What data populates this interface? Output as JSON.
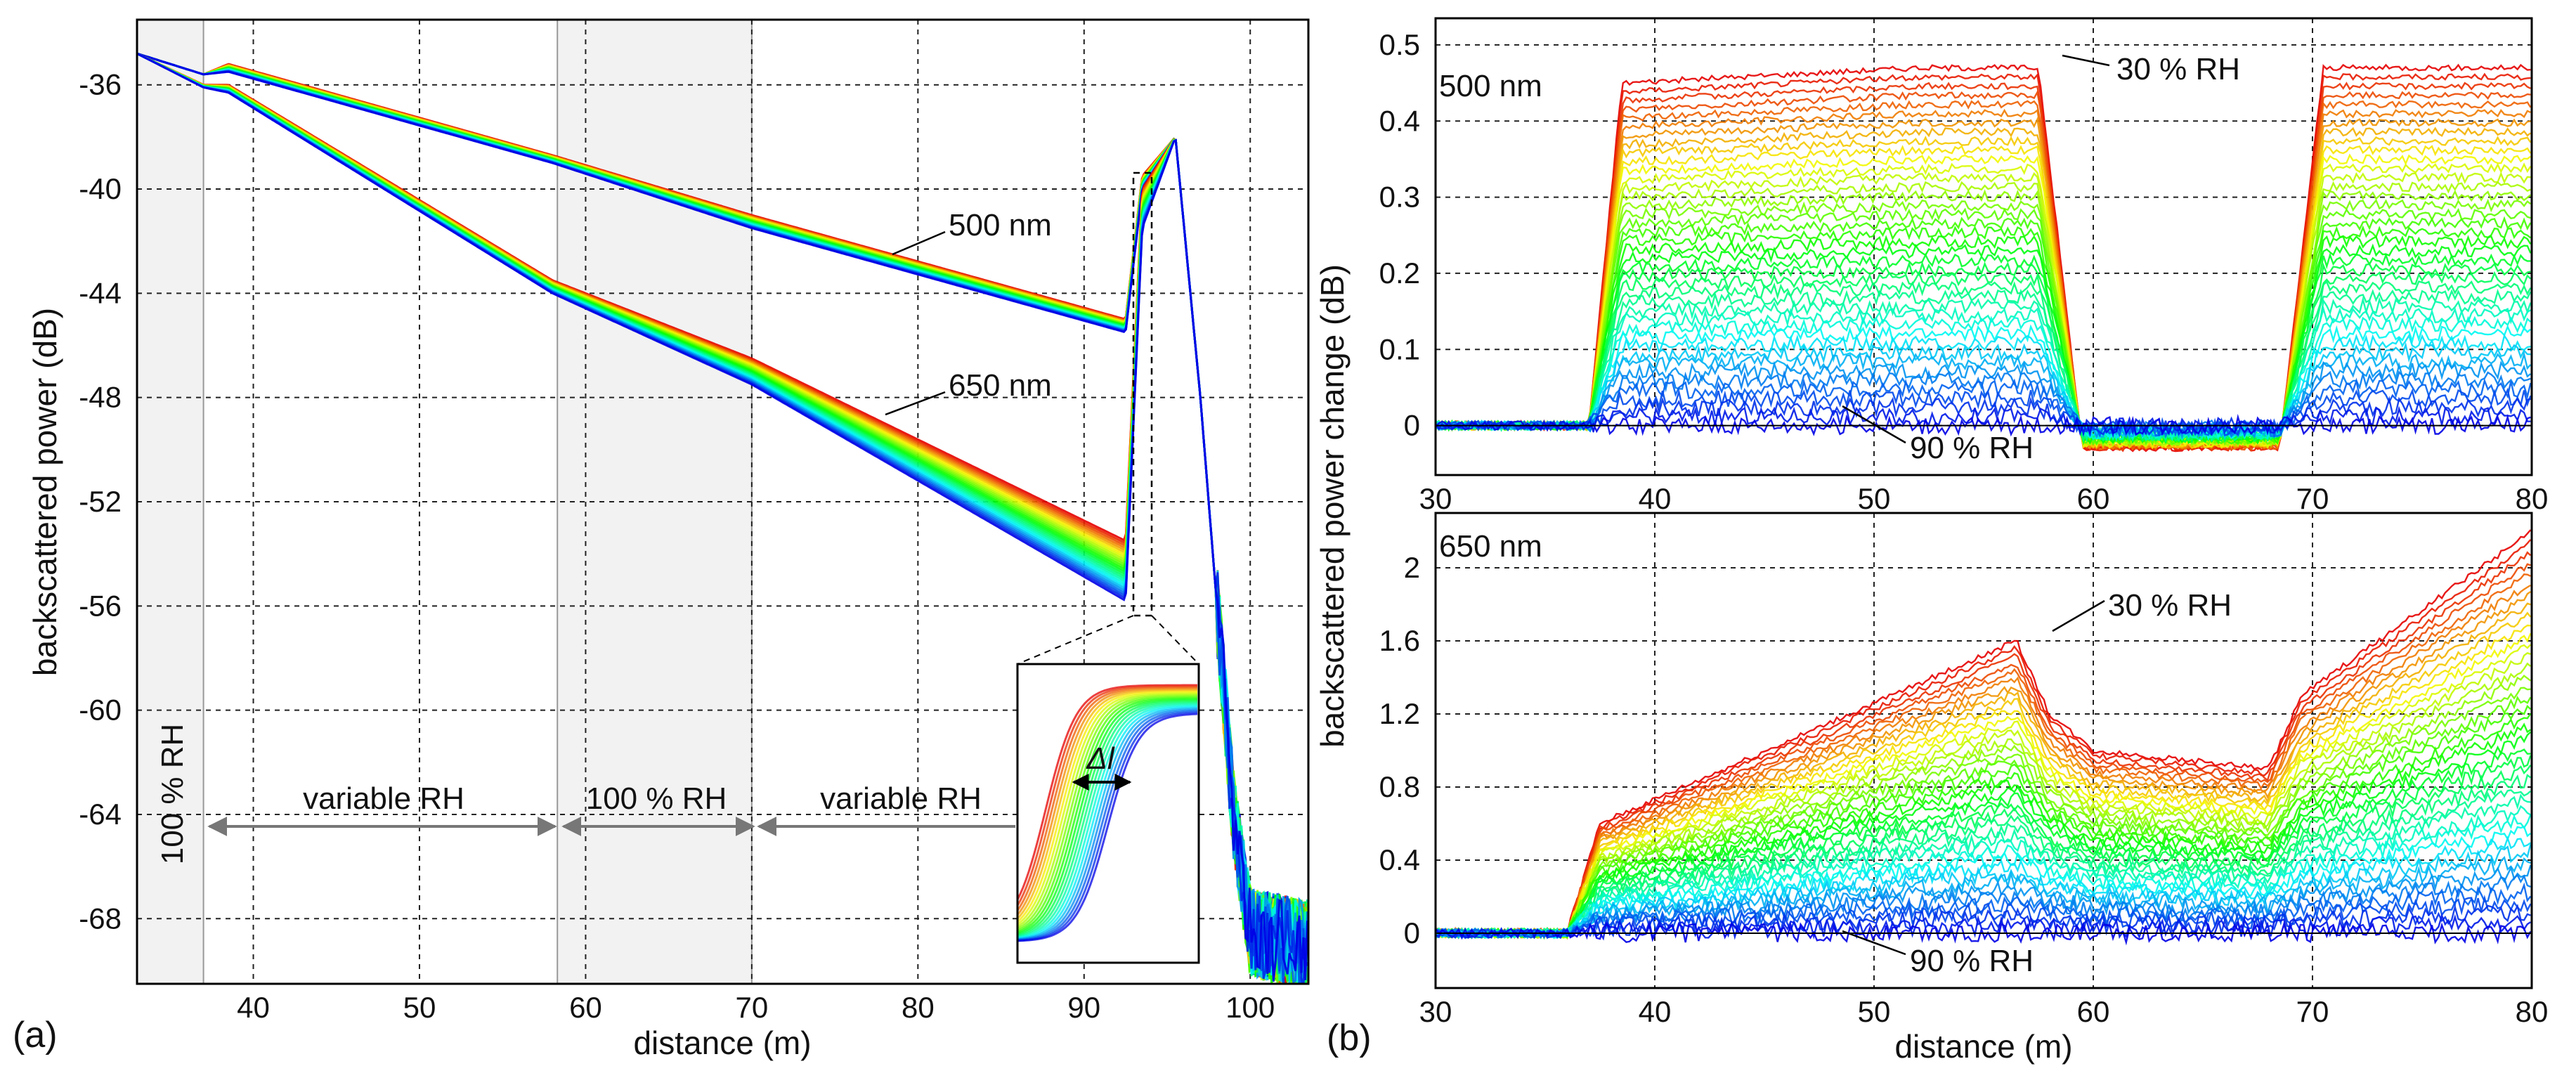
{
  "chart_data": [
    {
      "panel": "(a)",
      "type": "line",
      "xlabel": "distance (m)",
      "ylabel": "backscattered power (dB)",
      "xlim": [
        33,
        103.5
      ],
      "ylim": [
        -70.5,
        -33.5
      ],
      "xticks": [
        40,
        50,
        60,
        70,
        80,
        90,
        100
      ],
      "yticks": [
        -36,
        -40,
        -44,
        -48,
        -52,
        -56,
        -60,
        -64,
        -68
      ],
      "grid": true,
      "shaded_regions": [
        {
          "x": [
            33,
            37
          ],
          "label": "100 % RH",
          "orientation": "vertical"
        },
        {
          "x": [
            58.3,
            70
          ],
          "label": "100 % RH"
        }
      ],
      "region_arrows": [
        {
          "x": [
            37,
            58.3
          ],
          "label": "variable RH"
        },
        {
          "x": [
            70,
            94
          ],
          "label": "variable RH"
        }
      ],
      "series": [
        {
          "name": "500 nm",
          "x": [
            33,
            37,
            38.5,
            58,
            70,
            92.5,
            93.5,
            95.5,
            97,
            99,
            100,
            103
          ],
          "y_high_rh": [
            -34.8,
            -35.6,
            -35.5,
            -39.0,
            -41.5,
            -45.5,
            -40.0,
            -38.0,
            -48.0,
            -64.0,
            -68.5,
            -69.0
          ],
          "y_low_rh": [
            -34.8,
            -35.6,
            -35.2,
            -38.7,
            -41.0,
            -45.0,
            -39.5,
            -38.0,
            -48.0,
            -64.0,
            -68.5,
            -69.0
          ]
        },
        {
          "name": "650 nm",
          "x": [
            33,
            37,
            38.5,
            58,
            70,
            92.5,
            93.5,
            95.5,
            97,
            99,
            100,
            103
          ],
          "y_high_rh": [
            -34.8,
            -36.1,
            -36.3,
            -44.0,
            -47.5,
            -55.8,
            -41.5,
            -38.0,
            -48.0,
            -64.0,
            -68.5,
            -69.0
          ],
          "y_low_rh": [
            -34.8,
            -36.0,
            -36.0,
            -43.5,
            -46.5,
            -53.5,
            -40.0,
            -38.0,
            -48.0,
            -64.0,
            -68.5,
            -69.0
          ]
        }
      ],
      "inset": {
        "label": "Δl",
        "zoom_box_x": [
          92.8,
          94.5
        ],
        "zoom_box_y": [
          -57,
          -39
        ]
      }
    },
    {
      "panel": "(b) top",
      "type": "line",
      "title": "500 nm",
      "xlabel": "",
      "ylabel": "backscattered power change (dB)",
      "xlim": [
        30,
        80
      ],
      "ylim": [
        -0.065,
        0.535
      ],
      "xticks": [
        30,
        40,
        50,
        60,
        70,
        80
      ],
      "yticks": [
        0,
        0.1,
        0.2,
        0.3,
        0.4,
        0.5
      ],
      "grid": true,
      "curves_from": "30 % RH",
      "curves_to": "90 % RH",
      "envelope_30RH": {
        "x": [
          30,
          37,
          38.5,
          52,
          57.5,
          59.5,
          68.5,
          70.5,
          80
        ],
        "y": [
          0.0,
          0.0,
          0.45,
          0.47,
          0.47,
          -0.03,
          -0.03,
          0.47,
          0.47
        ]
      },
      "annotations": [
        {
          "text": "30 % RH",
          "arrow_to_x": 57,
          "arrow_to_y": 0.49
        },
        {
          "text": "90 % RH",
          "arrow_to_x": 52.5,
          "arrow_to_y": 0.0
        }
      ]
    },
    {
      "panel": "(b) bottom",
      "type": "line",
      "title": "650 nm",
      "xlabel": "distance (m)",
      "ylabel": "",
      "xlim": [
        30,
        80
      ],
      "ylim": [
        -0.3,
        2.3
      ],
      "xticks": [
        30,
        40,
        50,
        60,
        70,
        80
      ],
      "yticks": [
        0,
        0.4,
        0.8,
        1.2,
        1.6,
        2
      ],
      "grid": true,
      "curves_from": "30 % RH",
      "curves_to": "90 % RH",
      "envelope_30RH": {
        "x": [
          30,
          36,
          37.5,
          56.5,
          58,
          60,
          68,
          69.5,
          80
        ],
        "y": [
          0.0,
          0.0,
          0.6,
          1.6,
          1.2,
          1.0,
          0.9,
          1.3,
          2.2
        ]
      },
      "annotations": [
        {
          "text": "30 % RH",
          "arrow_to_x": 56.5,
          "arrow_to_y": 1.62
        },
        {
          "text": "90 % RH",
          "arrow_to_x": 50.8,
          "arrow_to_y": 0.0
        }
      ]
    }
  ],
  "labels": {
    "panel_a": "(a)",
    "panel_b": "(b)",
    "series_500": "500 nm",
    "series_650": "650 nm",
    "region_100_left": "100 % RH",
    "region_100_mid": "100 % RH",
    "region_var_1": "variable RH",
    "region_var_2": "variable RH",
    "inset_delta": "Δl",
    "top_title": "500 nm",
    "bottom_title": "650 nm",
    "top_30rh": "30 % RH",
    "top_90rh": "90 % RH",
    "bot_30rh": "30 % RH",
    "bot_90rh": "90 % RH"
  },
  "colors": {
    "low_rh": "#d40000",
    "high_rh": "#0000c8",
    "shade": "#f2f2f2",
    "grid": "#222222",
    "arrow": "#777777"
  }
}
